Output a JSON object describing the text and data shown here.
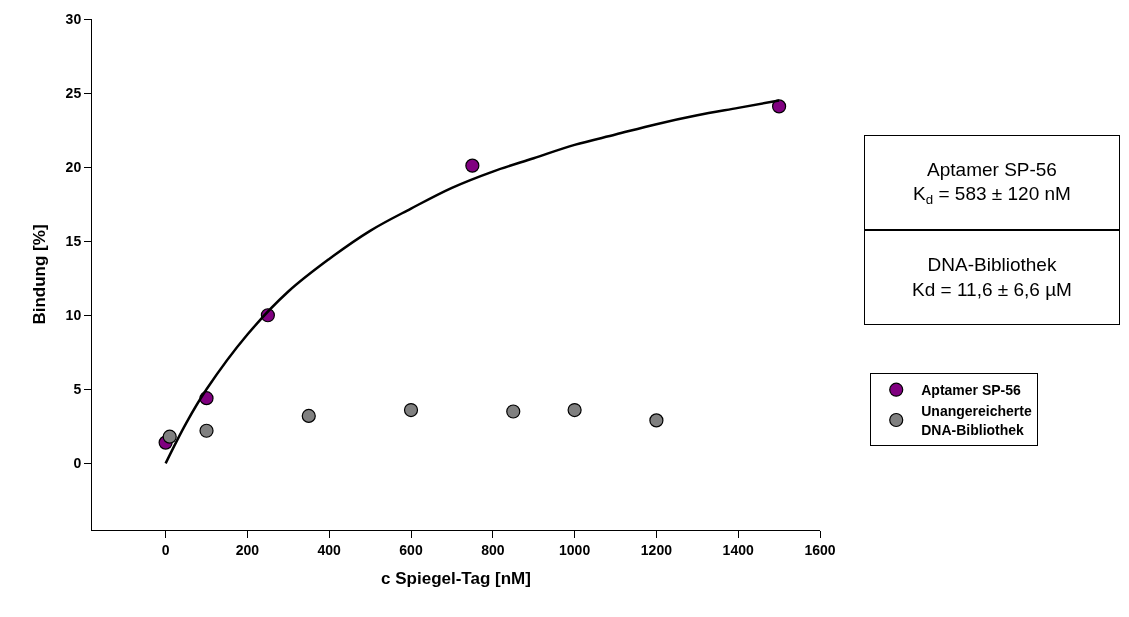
{
  "chart_data": {
    "type": "scatter",
    "xlabel": "c Spiegel-Tag [nM]",
    "ylabel": "Bindung [%]",
    "xlim": [
      -180,
      1600
    ],
    "xticks": [
      0,
      200,
      400,
      600,
      800,
      1000,
      1200,
      1400,
      1600
    ],
    "ylim": [
      -4.5,
      30
    ],
    "yticks": [
      0,
      5,
      10,
      15,
      20,
      25,
      30
    ],
    "legend": "right",
    "marker": "circle",
    "annotations": [
      "Aptamer SP-56\nK$_{d}$ = 583 ± 120 nM",
      "DNA-Bibliothek\nKd = 11,6 ± 6,6 µM"
    ],
    "series": [
      {
        "name": "Aptamer SP-56",
        "color": "#800080",
        "x": [
          0,
          100,
          250,
          750,
          1500
        ],
        "values": [
          1.4,
          4.4,
          10.0,
          20.1,
          24.1
        ]
      },
      {
        "name": "Unangereicherte DNA-Bibliothek",
        "color": "#808080",
        "x": [
          10,
          100,
          350,
          600,
          850,
          1000,
          1200
        ],
        "values": [
          1.8,
          2.2,
          3.2,
          3.6,
          3.5,
          3.6,
          2.9
        ]
      },
      {
        "type": "line",
        "color": "#000000",
        "line_style": "solid",
        "marker": "none",
        "x": [
          0,
          50,
          100,
          200,
          300,
          400,
          500,
          600,
          700,
          800,
          900,
          1000,
          1100,
          1200,
          1300,
          1400,
          1500
        ],
        "values": [
          0,
          2.7,
          5.0,
          8.7,
          11.6,
          13.8,
          15.7,
          17.2,
          18.6,
          19.7,
          20.6,
          21.5,
          22.2,
          22.9,
          23.5,
          24.0,
          24.5
        ]
      }
    ]
  }
}
